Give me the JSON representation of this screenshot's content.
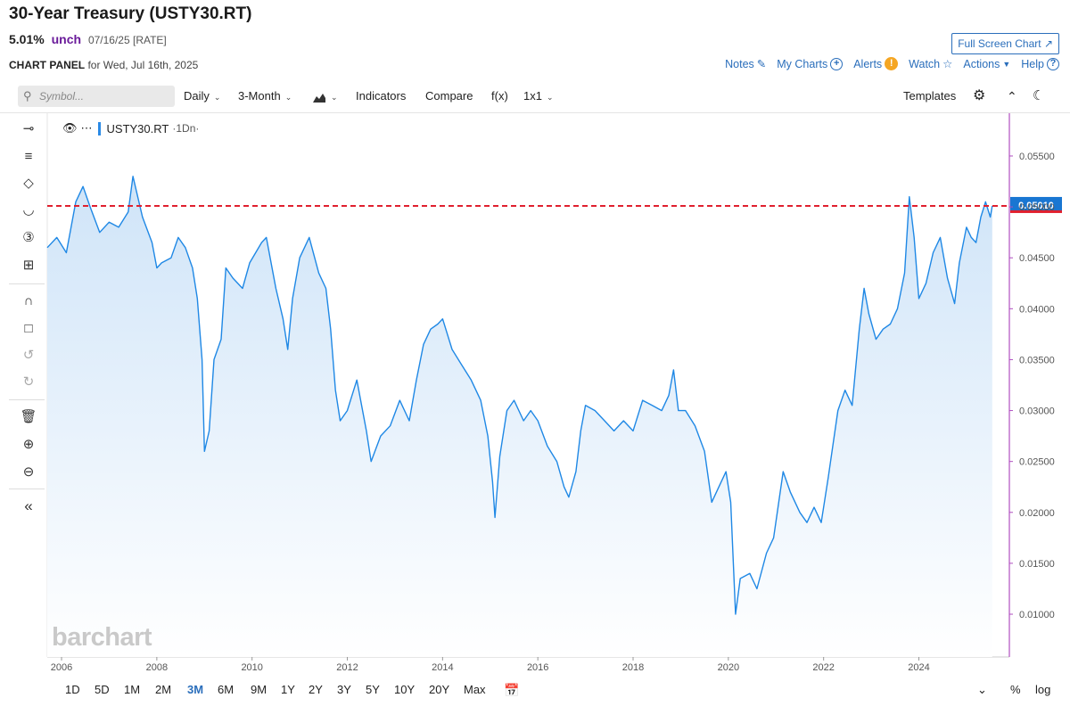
{
  "header": {
    "title": "30-Year Treasury (USTY30.RT)",
    "price": "5.01%",
    "change": "unch",
    "date_meta": "07/16/25 [RATE]",
    "panel_label": "CHART PANEL",
    "panel_date": "for Wed, Jul 16th, 2025",
    "full_screen": "Full Screen Chart"
  },
  "top_links": {
    "notes": "Notes",
    "my_charts": "My Charts",
    "alerts": "Alerts",
    "watch": "Watch",
    "actions": "Actions",
    "help": "Help"
  },
  "toolbar": {
    "symbol_placeholder": "Symbol...",
    "period": "Daily",
    "range": "3-Month",
    "indicators": "Indicators",
    "compare": "Compare",
    "fx": "f(x)",
    "layout": "1x1",
    "templates": "Templates"
  },
  "legend": {
    "symbol": "USTY30.RT",
    "interval": "·1Dn·"
  },
  "watermark": "barchart",
  "bottom_ranges": [
    "1D",
    "5D",
    "1M",
    "2M",
    "3M",
    "6M",
    "9M",
    "1Y",
    "2Y",
    "3Y",
    "5Y",
    "10Y",
    "20Y",
    "Max"
  ],
  "active_range": "3M",
  "bottom_right": {
    "percent": "%",
    "log": "log"
  },
  "colors": {
    "line": "#1f88e5",
    "fill_top": "#cfe4f8",
    "last_line": "#e0202e",
    "axis_border": "#b04fc0",
    "accent": "#2a6ebb"
  },
  "chart_data": {
    "type": "area",
    "x_unit": "year",
    "xlim": [
      2005.7,
      2025.9
    ],
    "ylim": [
      0.0058,
      0.0592
    ],
    "x_ticks": [
      "2006",
      "2008",
      "2010",
      "2012",
      "2014",
      "2016",
      "2018",
      "2020",
      "2022",
      "2024"
    ],
    "y_ticks": [
      "0.01000",
      "0.01500",
      "0.02000",
      "0.02500",
      "0.03000",
      "0.03500",
      "0.04000",
      "0.04500",
      "0.05000",
      "0.05500"
    ],
    "last_value_label": "0.05010",
    "last_value": 0.0501,
    "series": [
      {
        "points": [
          [
            2005.7,
            0.046
          ],
          [
            2005.9,
            0.047
          ],
          [
            2006.1,
            0.0455
          ],
          [
            2006.3,
            0.0505
          ],
          [
            2006.45,
            0.052
          ],
          [
            2006.6,
            0.05
          ],
          [
            2006.8,
            0.0475
          ],
          [
            2007.0,
            0.0485
          ],
          [
            2007.2,
            0.048
          ],
          [
            2007.4,
            0.0495
          ],
          [
            2007.5,
            0.053
          ],
          [
            2007.7,
            0.049
          ],
          [
            2007.9,
            0.0465
          ],
          [
            2008.0,
            0.044
          ],
          [
            2008.1,
            0.0445
          ],
          [
            2008.3,
            0.045
          ],
          [
            2008.45,
            0.047
          ],
          [
            2008.6,
            0.046
          ],
          [
            2008.75,
            0.044
          ],
          [
            2008.85,
            0.041
          ],
          [
            2008.95,
            0.035
          ],
          [
            2009.0,
            0.026
          ],
          [
            2009.1,
            0.028
          ],
          [
            2009.2,
            0.035
          ],
          [
            2009.35,
            0.037
          ],
          [
            2009.45,
            0.044
          ],
          [
            2009.6,
            0.043
          ],
          [
            2009.8,
            0.042
          ],
          [
            2009.95,
            0.0445
          ],
          [
            2010.2,
            0.0465
          ],
          [
            2010.3,
            0.047
          ],
          [
            2010.5,
            0.042
          ],
          [
            2010.65,
            0.039
          ],
          [
            2010.75,
            0.036
          ],
          [
            2010.85,
            0.041
          ],
          [
            2011.0,
            0.045
          ],
          [
            2011.2,
            0.047
          ],
          [
            2011.4,
            0.0435
          ],
          [
            2011.55,
            0.042
          ],
          [
            2011.65,
            0.038
          ],
          [
            2011.75,
            0.032
          ],
          [
            2011.85,
            0.029
          ],
          [
            2012.0,
            0.03
          ],
          [
            2012.2,
            0.033
          ],
          [
            2012.4,
            0.028
          ],
          [
            2012.5,
            0.025
          ],
          [
            2012.7,
            0.0275
          ],
          [
            2012.9,
            0.0285
          ],
          [
            2013.1,
            0.031
          ],
          [
            2013.3,
            0.029
          ],
          [
            2013.45,
            0.033
          ],
          [
            2013.6,
            0.0365
          ],
          [
            2013.75,
            0.038
          ],
          [
            2013.9,
            0.0385
          ],
          [
            2014.0,
            0.039
          ],
          [
            2014.2,
            0.036
          ],
          [
            2014.4,
            0.0345
          ],
          [
            2014.6,
            0.033
          ],
          [
            2014.8,
            0.031
          ],
          [
            2014.95,
            0.0275
          ],
          [
            2015.05,
            0.023
          ],
          [
            2015.1,
            0.0195
          ],
          [
            2015.2,
            0.0255
          ],
          [
            2015.35,
            0.03
          ],
          [
            2015.5,
            0.031
          ],
          [
            2015.7,
            0.029
          ],
          [
            2015.85,
            0.03
          ],
          [
            2016.0,
            0.029
          ],
          [
            2016.2,
            0.0265
          ],
          [
            2016.4,
            0.025
          ],
          [
            2016.55,
            0.0225
          ],
          [
            2016.65,
            0.0215
          ],
          [
            2016.8,
            0.024
          ],
          [
            2016.9,
            0.028
          ],
          [
            2017.0,
            0.0305
          ],
          [
            2017.2,
            0.03
          ],
          [
            2017.4,
            0.029
          ],
          [
            2017.6,
            0.028
          ],
          [
            2017.8,
            0.029
          ],
          [
            2018.0,
            0.028
          ],
          [
            2018.2,
            0.031
          ],
          [
            2018.4,
            0.0305
          ],
          [
            2018.6,
            0.03
          ],
          [
            2018.75,
            0.0315
          ],
          [
            2018.85,
            0.034
          ],
          [
            2018.95,
            0.03
          ],
          [
            2019.1,
            0.03
          ],
          [
            2019.3,
            0.0285
          ],
          [
            2019.5,
            0.026
          ],
          [
            2019.65,
            0.021
          ],
          [
            2019.8,
            0.0225
          ],
          [
            2019.95,
            0.024
          ],
          [
            2020.05,
            0.021
          ],
          [
            2020.15,
            0.01
          ],
          [
            2020.25,
            0.0135
          ],
          [
            2020.45,
            0.014
          ],
          [
            2020.6,
            0.0125
          ],
          [
            2020.8,
            0.016
          ],
          [
            2020.95,
            0.0175
          ],
          [
            2021.15,
            0.024
          ],
          [
            2021.3,
            0.022
          ],
          [
            2021.5,
            0.02
          ],
          [
            2021.65,
            0.019
          ],
          [
            2021.8,
            0.0205
          ],
          [
            2021.95,
            0.019
          ],
          [
            2022.1,
            0.0235
          ],
          [
            2022.3,
            0.03
          ],
          [
            2022.45,
            0.032
          ],
          [
            2022.6,
            0.0305
          ],
          [
            2022.75,
            0.038
          ],
          [
            2022.85,
            0.042
          ],
          [
            2022.95,
            0.0395
          ],
          [
            2023.1,
            0.037
          ],
          [
            2023.25,
            0.038
          ],
          [
            2023.4,
            0.0385
          ],
          [
            2023.55,
            0.04
          ],
          [
            2023.7,
            0.0435
          ],
          [
            2023.8,
            0.051
          ],
          [
            2023.9,
            0.047
          ],
          [
            2024.0,
            0.041
          ],
          [
            2024.15,
            0.0425
          ],
          [
            2024.3,
            0.0455
          ],
          [
            2024.45,
            0.047
          ],
          [
            2024.6,
            0.043
          ],
          [
            2024.75,
            0.0405
          ],
          [
            2024.85,
            0.0445
          ],
          [
            2025.0,
            0.048
          ],
          [
            2025.1,
            0.047
          ],
          [
            2025.2,
            0.0465
          ],
          [
            2025.3,
            0.049
          ],
          [
            2025.4,
            0.0505
          ],
          [
            2025.5,
            0.049
          ],
          [
            2025.54,
            0.0501
          ]
        ]
      }
    ]
  }
}
